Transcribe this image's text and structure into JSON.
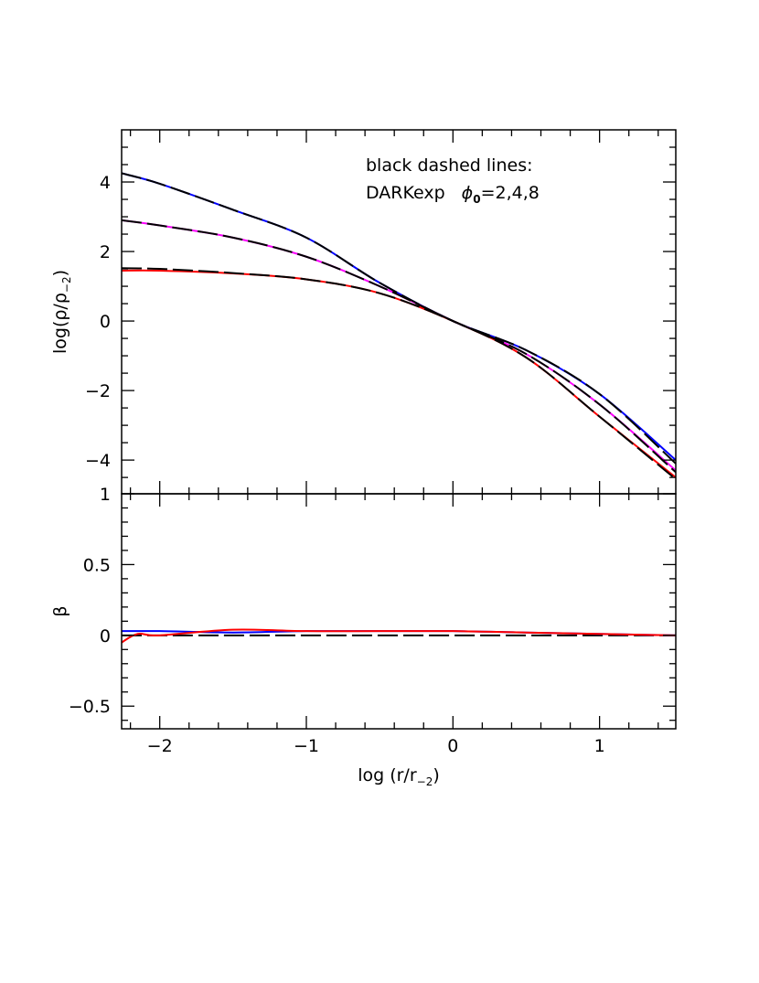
{
  "chart_data": [
    {
      "type": "line",
      "ylabel": {
        "main": "log(ρ/ρ",
        "sub": "−2",
        "end": ")"
      },
      "annotation": {
        "line1": "black dashed lines:",
        "line2": "DARKexp",
        "symbol": "ϕ",
        "sub": "0",
        "rest": "=2,4,8"
      },
      "xlim": [
        -2.26,
        1.52
      ],
      "ylim": [
        -4.97,
        5.5
      ],
      "xticks": [
        -2,
        -1,
        0,
        1
      ],
      "xticks_minor": [
        -2.2,
        -1.8,
        -1.6,
        -1.4,
        -1.2,
        -0.8,
        -0.6,
        -0.4,
        -0.2,
        0.2,
        0.4,
        0.6,
        0.8,
        1.2,
        1.4
      ],
      "yticks": [
        -4,
        -2,
        0,
        2,
        4
      ],
      "yticks_minor": [
        -4.5,
        -3.5,
        -3,
        -2.5,
        -1.5,
        -1,
        -0.5,
        0.5,
        1,
        1.5,
        2.5,
        3,
        3.5,
        4.5,
        5
      ],
      "series": [
        {
          "color": "#0000ff",
          "dashed": false,
          "x": [
            -2.26,
            -2,
            -1.5,
            -1,
            -0.5,
            0,
            0.5,
            1,
            1.52
          ],
          "values": [
            4.25,
            3.95,
            3.2,
            2.4,
            1.1,
            0,
            -0.84,
            -2.1,
            -4.0
          ]
        },
        {
          "color": "#ff00ff",
          "dashed": false,
          "x": [
            -2.26,
            -2,
            -1.5,
            -1,
            -0.5,
            0,
            0.5,
            1,
            1.52
          ],
          "values": [
            2.9,
            2.75,
            2.4,
            1.85,
            1.0,
            0,
            -0.95,
            -2.4,
            -4.3
          ]
        },
        {
          "color": "#ff0000",
          "dashed": false,
          "x": [
            -2.26,
            -2,
            -1.5,
            -1,
            -0.5,
            0,
            0.5,
            1,
            1.52
          ],
          "values": [
            1.45,
            1.45,
            1.37,
            1.2,
            0.8,
            0,
            -1.05,
            -2.75,
            -4.5
          ]
        },
        {
          "color": "#000000",
          "dashed": true,
          "x": [
            -2.26,
            -2,
            -1.5,
            -1,
            -0.5,
            0,
            0.5,
            1,
            1.52
          ],
          "values": [
            4.25,
            3.95,
            3.2,
            2.4,
            1.1,
            0,
            -0.84,
            -2.1,
            -4.1
          ]
        },
        {
          "color": "#000000",
          "dashed": true,
          "x": [
            -2.26,
            -2,
            -1.5,
            -1,
            -0.5,
            0,
            0.5,
            1,
            1.52
          ],
          "values": [
            2.9,
            2.75,
            2.4,
            1.85,
            1.0,
            0,
            -0.95,
            -2.4,
            -4.35
          ]
        },
        {
          "color": "#000000",
          "dashed": true,
          "x": [
            -2.26,
            -2,
            -1.5,
            -1,
            -0.5,
            0,
            0.5,
            1,
            1.52
          ],
          "values": [
            1.52,
            1.5,
            1.38,
            1.2,
            0.8,
            0,
            -1.05,
            -2.75,
            -4.55
          ]
        }
      ]
    },
    {
      "type": "line",
      "ylabel": {
        "main": "β"
      },
      "xlabel": {
        "main": "log (r/r",
        "sub": "−2",
        "end": ")"
      },
      "xlim": [
        -2.26,
        1.52
      ],
      "ylim": [
        -0.66,
        1
      ],
      "xticks": [
        -2,
        -1,
        0,
        1
      ],
      "xticks_minor": [
        -2.2,
        -1.8,
        -1.6,
        -1.4,
        -1.2,
        -0.8,
        -0.6,
        -0.4,
        -0.2,
        0.2,
        0.4,
        0.6,
        0.8,
        1.2,
        1.4
      ],
      "yticks": [
        -0.5,
        0,
        0.5,
        1
      ],
      "yticks_minor": [
        -0.6,
        -0.4,
        -0.3,
        -0.2,
        -0.1,
        0.1,
        0.2,
        0.3,
        0.4,
        0.6,
        0.7,
        0.8,
        0.9
      ],
      "series": [
        {
          "color": "#000000",
          "dashed": true,
          "x": [
            -2.26,
            1.52
          ],
          "values": [
            0,
            0
          ]
        },
        {
          "color": "#0000ff",
          "dashed": false,
          "x": [
            -2.26,
            -2,
            -1.5,
            -1,
            -0.5,
            0,
            0.5,
            1,
            1.52
          ],
          "values": [
            0.03,
            0.03,
            0.02,
            0.03,
            0.03,
            0.03,
            0.02,
            0.01,
            0.0
          ]
        },
        {
          "color": "#ff0000",
          "dashed": false,
          "x": [
            -2.26,
            -2.15,
            -2,
            -1.5,
            -1,
            -0.5,
            0,
            0.5,
            1,
            1.52
          ],
          "values": [
            -0.05,
            0.01,
            0.0,
            0.04,
            0.03,
            0.03,
            0.03,
            0.02,
            0.01,
            0.0
          ]
        }
      ]
    }
  ]
}
